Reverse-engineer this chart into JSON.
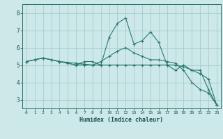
{
  "title": "",
  "xlabel": "Humidex (Indice chaleur)",
  "background_color": "#cce8e8",
  "grid_color": "#aacccc",
  "line_color": "#2a7a6e",
  "xlim": [
    -0.5,
    23.5
  ],
  "ylim": [
    2.5,
    8.5
  ],
  "yticks": [
    3,
    4,
    5,
    6,
    7,
    8
  ],
  "xticks": [
    0,
    1,
    2,
    3,
    4,
    5,
    6,
    7,
    8,
    9,
    10,
    11,
    12,
    13,
    14,
    15,
    16,
    17,
    18,
    19,
    20,
    21,
    22,
    23
  ],
  "series": [
    [
      5.2,
      5.3,
      5.4,
      5.3,
      5.2,
      5.1,
      5.0,
      5.2,
      5.2,
      5.0,
      6.6,
      7.4,
      7.7,
      6.2,
      6.4,
      6.9,
      6.3,
      5.0,
      4.7,
      5.0,
      4.7,
      4.7,
      3.6,
      2.7
    ],
    [
      5.2,
      5.3,
      5.4,
      5.3,
      5.2,
      5.1,
      5.0,
      5.0,
      5.0,
      5.0,
      5.0,
      5.0,
      5.0,
      5.0,
      5.0,
      5.0,
      5.0,
      5.0,
      5.0,
      4.9,
      4.7,
      4.5,
      4.2,
      2.7
    ],
    [
      5.2,
      5.3,
      5.4,
      5.3,
      5.2,
      5.15,
      5.1,
      5.05,
      5.0,
      5.2,
      5.5,
      5.8,
      6.0,
      5.7,
      5.5,
      5.3,
      5.3,
      5.2,
      5.1,
      4.7,
      4.0,
      3.6,
      3.4,
      2.7
    ]
  ]
}
